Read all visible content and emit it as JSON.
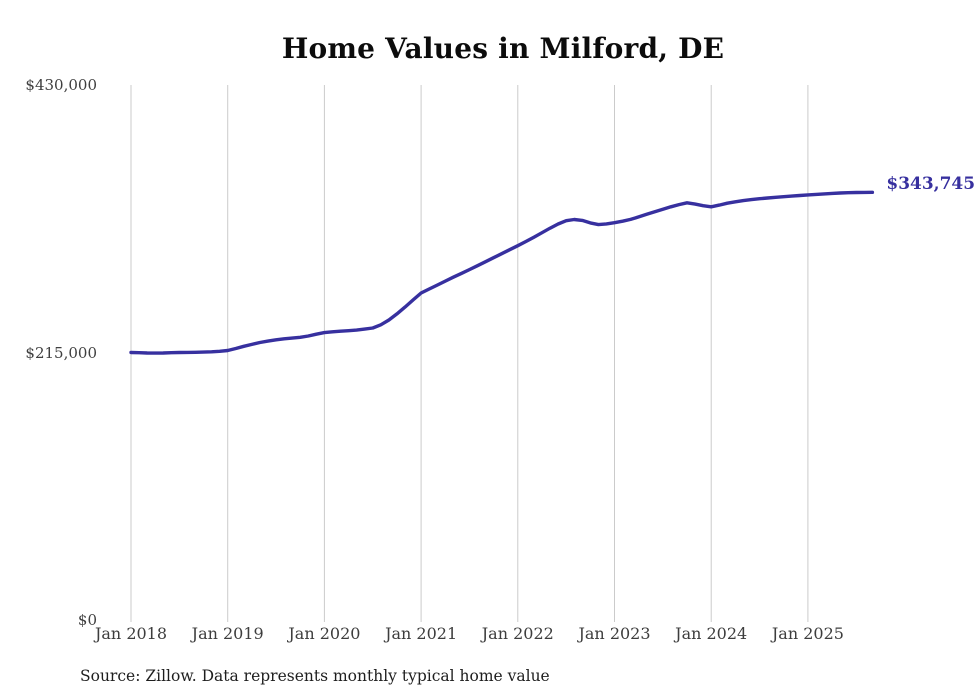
{
  "chart": {
    "title": "Home Values in Milford, DE",
    "source": "Source: Zillow. Data represents monthly typical home value"
  },
  "chart_data": {
    "type": "line",
    "title": "Home Values in Milford, DE",
    "series_name": "Monthly typical home value",
    "start_month": "2018-01",
    "end_month": "2025-09",
    "frequency": "monthly",
    "x_tick_labels": [
      "Jan 2018",
      "Jan 2019",
      "Jan 2020",
      "Jan 2021",
      "Jan 2022",
      "Jan 2023",
      "Jan 2024",
      "Jan 2025"
    ],
    "y_ticks": [
      {
        "label": "$0",
        "value": 0
      },
      {
        "label": "$215,000",
        "value": 215000
      },
      {
        "label": "$430,000",
        "value": 430000
      }
    ],
    "ylim": [
      0,
      430000
    ],
    "grid": "vertical-only",
    "legend": "none",
    "line_color": "#37309f",
    "grid_color": "#cbcbcb",
    "end_label": "$343,745",
    "latest_value": 343745,
    "values": [
      215000,
      214800,
      214600,
      214500,
      214600,
      214800,
      215000,
      215100,
      215200,
      215300,
      215600,
      216000,
      216600,
      218200,
      220000,
      221500,
      223000,
      224200,
      225200,
      226000,
      226600,
      227200,
      228300,
      229700,
      231000,
      231600,
      232100,
      232500,
      233000,
      233800,
      234700,
      237300,
      241100,
      246000,
      251500,
      257200,
      262800,
      266000,
      269200,
      272400,
      275500,
      278600,
      281600,
      284800,
      288000,
      291200,
      294400,
      297600,
      300800,
      304200,
      307700,
      311300,
      314900,
      318300,
      320900,
      321900,
      321200,
      319200,
      317800,
      318400,
      319300,
      320500,
      322000,
      324000,
      326100,
      328100,
      330100,
      332100,
      333900,
      335300,
      334300,
      333000,
      332100,
      333500,
      335000,
      336100,
      337100,
      337900,
      338600,
      339200,
      339700,
      340200,
      340700,
      341200,
      341700,
      342100,
      342500,
      342900,
      343200,
      343400,
      343600,
      343700,
      343745
    ]
  }
}
